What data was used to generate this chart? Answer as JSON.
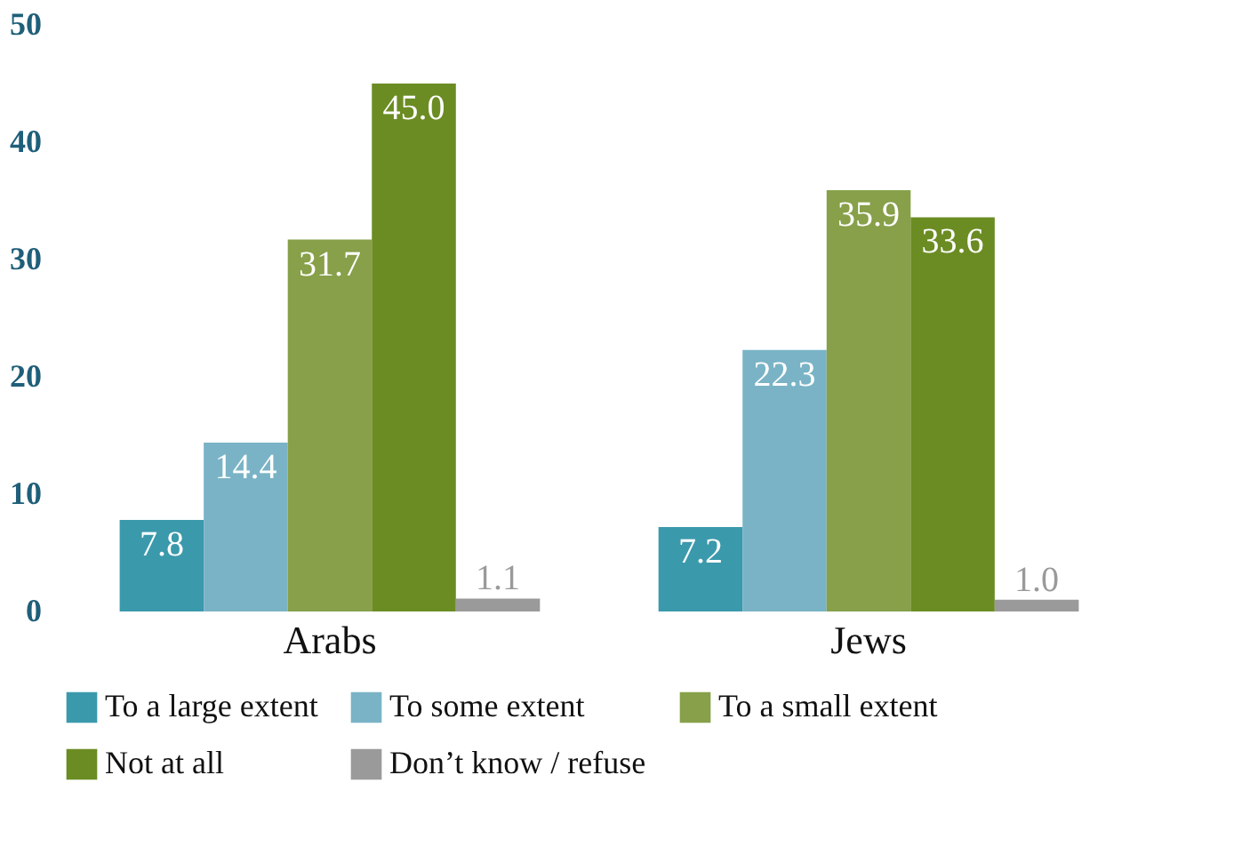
{
  "chart_data": {
    "type": "bar",
    "categories": [
      "Arabs",
      "Jews"
    ],
    "series": [
      {
        "name": "To a large extent",
        "color": "#3b99ac",
        "values": [
          7.8,
          7.2
        ],
        "value_labels": [
          "7.8",
          "7.2"
        ]
      },
      {
        "name": "To some extent",
        "color": "#7ab3c6",
        "values": [
          14.4,
          22.3
        ],
        "value_labels": [
          "14.4",
          "22.3"
        ]
      },
      {
        "name": "To a small extent",
        "color": "#87a049",
        "values": [
          31.7,
          35.9
        ],
        "value_labels": [
          "31.7",
          "35.9"
        ]
      },
      {
        "name": "Not at all",
        "color": "#6b8c23",
        "values": [
          45.0,
          33.6
        ],
        "value_labels": [
          "45.0",
          "33.6"
        ]
      },
      {
        "name": "Don’t know / refuse",
        "color": "#9a9a9a",
        "values": [
          1.1,
          1.0
        ],
        "value_labels": [
          "1.1",
          "1.0"
        ]
      }
    ],
    "ylim": [
      0,
      50
    ],
    "yticks": [
      0,
      10,
      20,
      30,
      40,
      50
    ],
    "grid": false,
    "legend": "bottom"
  }
}
